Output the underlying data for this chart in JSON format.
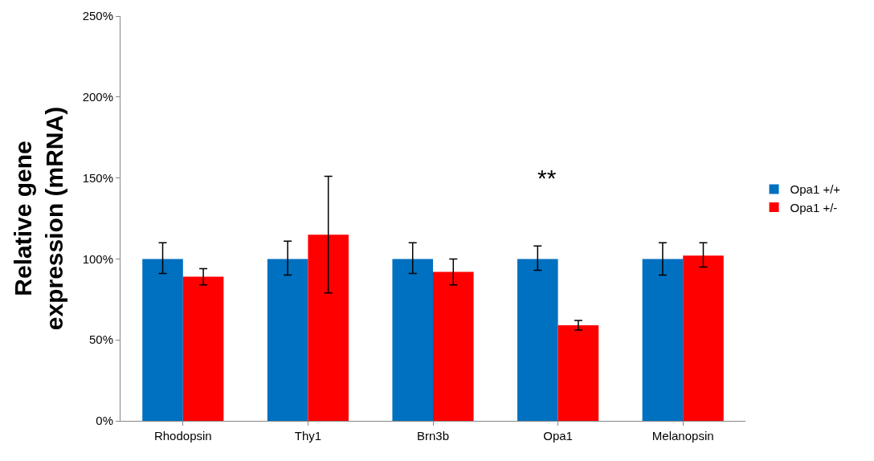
{
  "chart_data": {
    "type": "bar",
    "ylabel": "Relative gene expression (mRNA)",
    "categories": [
      "Rhodopsin",
      "Thy1",
      "Brn3b",
      "Opa1",
      "Melanopsin"
    ],
    "series": [
      {
        "name": "Opa1 +/+",
        "color": "#0070c0",
        "values": [
          100,
          100,
          100,
          100,
          100
        ],
        "errors": [
          [
            91,
            110
          ],
          [
            90,
            111
          ],
          [
            91,
            110
          ],
          [
            93,
            108
          ],
          [
            90,
            110
          ]
        ]
      },
      {
        "name": "Opa1 +/-",
        "color": "#ff0000",
        "values": [
          89,
          115,
          92,
          59,
          102
        ],
        "errors": [
          [
            84,
            94
          ],
          [
            79,
            151
          ],
          [
            84,
            100
          ],
          [
            56,
            62
          ],
          [
            95,
            110
          ]
        ]
      }
    ],
    "ylim": [
      0,
      250
    ],
    "yticks": [
      {
        "value": 0,
        "label": "0%"
      },
      {
        "value": 50,
        "label": "50%"
      },
      {
        "value": 100,
        "label": "100%"
      },
      {
        "value": 150,
        "label": "150%"
      },
      {
        "value": 200,
        "label": "200%"
      },
      {
        "value": 250,
        "label": "250%"
      }
    ],
    "annotations": [
      "**"
    ],
    "legend": "right"
  }
}
